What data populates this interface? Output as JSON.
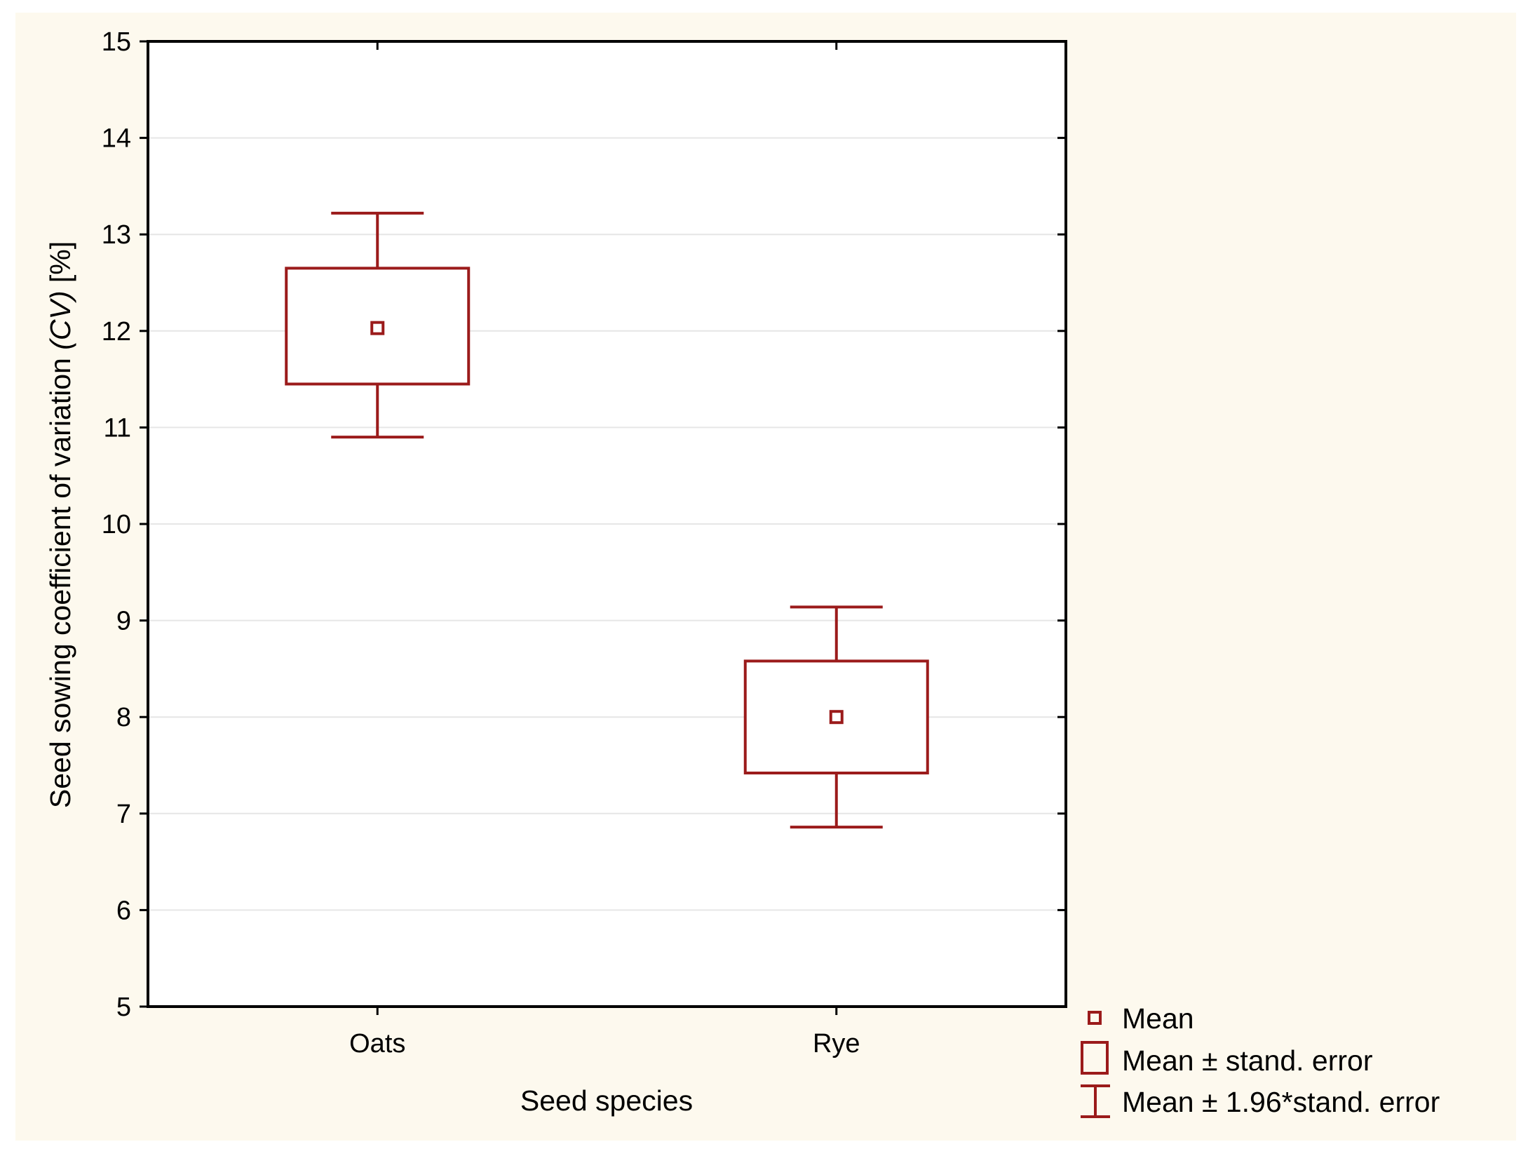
{
  "chart_data": {
    "type": "box",
    "title": "",
    "xlabel": "Seed species",
    "ylabel": "Seed sowing coefficient of variation (CV) [%]",
    "ylabel_parts": [
      "Seed sowing coefficient of variation ",
      "(CV)",
      " [%]"
    ],
    "ylim": [
      5,
      15
    ],
    "yticks": [
      "5",
      "6",
      "7",
      "8",
      "9",
      "10",
      "11",
      "12",
      "13",
      "14",
      "15"
    ],
    "grid": true,
    "categories": [
      "Oats",
      "Rye"
    ],
    "series": [
      {
        "name": "Oats",
        "mean": 12.03,
        "se_low": 11.45,
        "se_high": 12.65,
        "ci_low": 10.9,
        "ci_high": 13.22
      },
      {
        "name": "Rye",
        "mean": 8.0,
        "se_low": 7.42,
        "se_high": 8.58,
        "ci_low": 6.86,
        "ci_high": 9.14
      }
    ],
    "legend": {
      "position": "bottom-right",
      "items": [
        "Mean",
        "Mean ± stand. error",
        "Mean ± 1.96*stand. error"
      ]
    },
    "colors": {
      "series": "#9b1b1b",
      "background": "#fdf9ee",
      "grid": "#e6e6e6",
      "axis": "#000000"
    }
  }
}
